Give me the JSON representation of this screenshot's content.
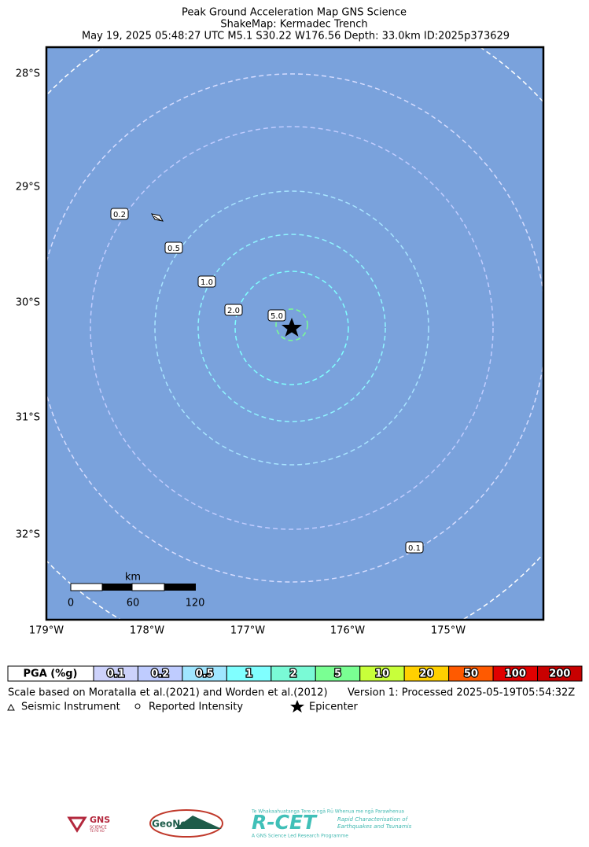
{
  "header": {
    "title": "Peak Ground Acceleration Map GNS Science",
    "subtitle": "ShakeMap: Kermadec Trench",
    "event": "May 19, 2025 05:48:27 UTC M5.1 S30.22 W176.56 Depth: 33.0km ID:2025p373629"
  },
  "map": {
    "lat_labels": [
      "28°S",
      "29°S",
      "30°S",
      "31°S",
      "32°S"
    ],
    "lon_labels": [
      "179°W",
      "178°W",
      "177°W",
      "176°W",
      "175°W"
    ],
    "contour_labels": [
      "0.2",
      "0.5",
      "1.0",
      "2.0",
      "5.0",
      "0.1"
    ],
    "scale_bar": {
      "unit": "km",
      "ticks": [
        "0",
        "60",
        "120"
      ]
    }
  },
  "legend": {
    "header": "PGA (%g)",
    "levels": [
      "0.1",
      "0.2",
      "0.5",
      "1",
      "2",
      "5",
      "10",
      "20",
      "50",
      "100",
      "200"
    ]
  },
  "footer": {
    "scale_note": "Scale based on Moratalla et al.(2021) and Worden et al.(2012)",
    "version": "Version 1: Processed 2025-05-19T05:54:32Z",
    "symbols": [
      "Seismic Instrument",
      "Reported Intensity",
      "Epicenter"
    ]
  },
  "logos": {
    "gns": "GNS",
    "gns_sub": "SCIENCE",
    "gns_maori": "TE PŪ AO",
    "geonet": "GeoNet",
    "rcet": "R-CET",
    "rcet_maori": "Te Whakaahuatanga Tere o ngā Rū Whenua me ngā Parawhenua",
    "rcet_line1": "Rapid Characterisation of",
    "rcet_line2": "Earthquakes and Tsunamis",
    "rcet_footer": "A GNS Science Led Research Programme"
  }
}
